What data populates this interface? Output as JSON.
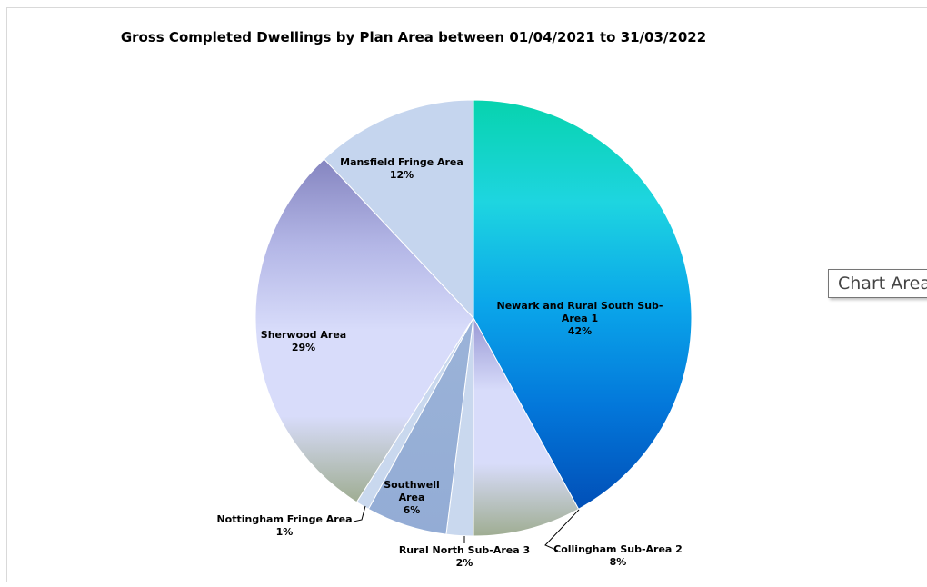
{
  "chart_data": {
    "type": "pie",
    "title": "Gross Completed Dwellings by Plan Area between 01/04/2021 to 31/03/2022",
    "slices": [
      {
        "label": "Newark and Rural South Sub-Area 1",
        "label_lines": [
          "Newark and Rural South Sub-",
          "Area 1"
        ],
        "value": 42,
        "pct": "42%",
        "colors": [
          "#07d3ae",
          "#1ed5e0",
          "#0aa6ea",
          "#0377da",
          "#014fb7"
        ]
      },
      {
        "label": "Collingham Sub-Area 2",
        "label_lines": [
          "Collingham Sub-Area 2"
        ],
        "value": 8,
        "pct": "8%",
        "colors": [
          "#9898d4",
          "#d8dcfa",
          "#d8dcfa",
          "#9fad92"
        ]
      },
      {
        "label": "Rural North Sub-Area 3",
        "label_lines": [
          "Rural North Sub-Area 3"
        ],
        "value": 2,
        "pct": "2%",
        "colors": [
          "#c9d8ee",
          "#c9d8ee"
        ]
      },
      {
        "label": "Southwell Area",
        "label_lines": [
          "Southwell",
          "Area"
        ],
        "value": 6,
        "pct": "6%",
        "colors": [
          "#9bb3d8",
          "#93acd5"
        ]
      },
      {
        "label": "Nottingham Fringe Area",
        "label_lines": [
          "Nottingham Fringe Area"
        ],
        "value": 1,
        "pct": "1%",
        "colors": [
          "#c9d8ee",
          "#c9d8ee"
        ]
      },
      {
        "label": "Sherwood Area",
        "label_lines": [
          "Sherwood Area"
        ],
        "value": 29,
        "pct": "29%",
        "colors": [
          "#8585c0",
          "#b3b6e6",
          "#d8dcfa",
          "#d8dcfa",
          "#9fad92"
        ]
      },
      {
        "label": "Mansfield Fringe Area",
        "label_lines": [
          "Mansfield Fringe Area"
        ],
        "value": 12,
        "pct": "12%",
        "colors": [
          "#c5d5ee",
          "#c5d5ee"
        ]
      }
    ]
  },
  "tooltip": {
    "text": "Chart Area"
  }
}
